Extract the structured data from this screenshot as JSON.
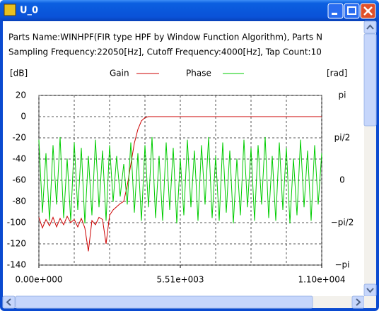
{
  "window": {
    "title": "U_0"
  },
  "info_lines": [
    "Parts Name:WINHPF(FIR type HPF by Window Function Algorithm), Parts N",
    "Sampling Frequency:22050[Hz], Cutoff Frequency:4000[Hz], Tap Count:10"
  ],
  "chart_data": {
    "type": "line",
    "y_label": "[dB]",
    "y2_label": "[rad]",
    "x": [
      0,
      137.8125,
      275.625,
      413.4375,
      551.25,
      689.0625,
      826.875,
      964.6875,
      1102.5,
      1240.3125,
      1378.125,
      1515.9375,
      1653.75,
      1791.5625,
      1929.375,
      2067.1875,
      2205,
      2342.8125,
      2480.625,
      2618.4375,
      2756.25,
      2894.0625,
      3031.875,
      3169.6875,
      3307.5,
      3445.3125,
      3583.125,
      3720.9375,
      3858.75,
      3996.5625,
      4134.375,
      4272.1875,
      4410,
      4547.8125,
      4685.625,
      4823.4375,
      4961.25,
      5099.0625,
      5236.875,
      5374.6875,
      5512.5,
      5650.3125,
      5788.125,
      5925.9375,
      6063.75,
      6201.5625,
      6339.375,
      6477.1875,
      6615,
      6752.8125,
      6890.625,
      7028.4375,
      7166.25,
      7304.0625,
      7441.875,
      7579.6875,
      7717.5,
      7855.3125,
      7993.125,
      8130.9375,
      8268.75,
      8406.5625,
      8544.375,
      8682.1875,
      8820,
      8957.8125,
      9095.625,
      9233.4375,
      9371.25,
      9509.0625,
      9646.875,
      9784.6875,
      9922.5,
      10060.3125,
      10198.125,
      10335.9375,
      10473.75,
      10611.5625,
      10749.375,
      10887.1875,
      11025
    ],
    "series": [
      {
        "name": "Gain",
        "color": "#cc0000",
        "values": [
          -95,
          -105,
          -97,
          -103,
          -95,
          -104,
          -96,
          -102,
          -94,
          -100,
          -97,
          -104,
          -96,
          -105,
          -127,
          -98,
          -102,
          -95,
          -97,
          -120,
          -93,
          -88,
          -85,
          -82,
          -80,
          -65,
          -45,
          -25,
          -12,
          -4,
          -1,
          0,
          0,
          0,
          0,
          0,
          0,
          0,
          0,
          0,
          0,
          0,
          0,
          0,
          0,
          0,
          0,
          0,
          0,
          0,
          0,
          0,
          0,
          0,
          0,
          0,
          0,
          0,
          0,
          0,
          0,
          0,
          0,
          0,
          0,
          0,
          0,
          0,
          0,
          0,
          0,
          0,
          0,
          0,
          0,
          0,
          0,
          0,
          0,
          0,
          0
        ]
      },
      {
        "name": "Phase",
        "color": "#00cc00",
        "axis": "y2",
        "values": [
          1.5,
          -1.2,
          1.0,
          -1.5,
          1.3,
          -0.9,
          1.6,
          -1.4,
          0.8,
          -1.5,
          1.4,
          -1.1,
          1.2,
          -1.6,
          0.9,
          -1.3,
          1.5,
          -1.0,
          1.1,
          -1.5,
          1.3,
          -0.8,
          0.9,
          -0.6,
          0.6,
          -0.9,
          1.4,
          -1.2,
          1.0,
          -1.5,
          1.3,
          -1.0,
          1.6,
          -1.4,
          0.9,
          -1.5,
          1.4,
          -1.1,
          1.2,
          -1.6,
          0.8,
          -1.3,
          1.5,
          -1.0,
          1.1,
          -1.5,
          1.3,
          -0.9,
          1.6,
          -1.4,
          0.9,
          -1.5,
          1.4,
          -1.2,
          1.1,
          -1.6,
          0.8,
          -1.3,
          1.5,
          -1.0,
          1.2,
          -1.5,
          1.3,
          -0.9,
          1.6,
          -1.4,
          0.9,
          -1.5,
          1.4,
          -1.1,
          1.2,
          -1.6,
          0.8,
          -1.3,
          1.5,
          -1.0,
          1.1,
          -1.5,
          1.3,
          -0.9,
          1.0
        ]
      }
    ],
    "xlim": [
      0,
      11025
    ],
    "xticks": [
      {
        "value": 0,
        "label": "0.00e+000"
      },
      {
        "value": 5512.5,
        "label": "5.51e+003"
      },
      {
        "value": 11025,
        "label": "1.10e+004"
      }
    ],
    "xgrid": [
      0,
      1378.125,
      2756.25,
      4134.375,
      5512.5,
      6890.625,
      8268.75,
      9646.875,
      11025
    ],
    "ylim": [
      -140,
      20
    ],
    "yticks": [
      20,
      0,
      -20,
      -40,
      -60,
      -80,
      -100,
      -120,
      -140
    ],
    "y2lim": [
      -3.14159,
      3.14159
    ],
    "y2ticks": [
      {
        "value": 3.14159,
        "label": "pi"
      },
      {
        "value": 1.5708,
        "label": "pi/2"
      },
      0,
      {
        "value": -1.5708,
        "label": "−pi/2"
      },
      {
        "value": -3.14159,
        "label": "−pi"
      }
    ],
    "grid": true
  }
}
